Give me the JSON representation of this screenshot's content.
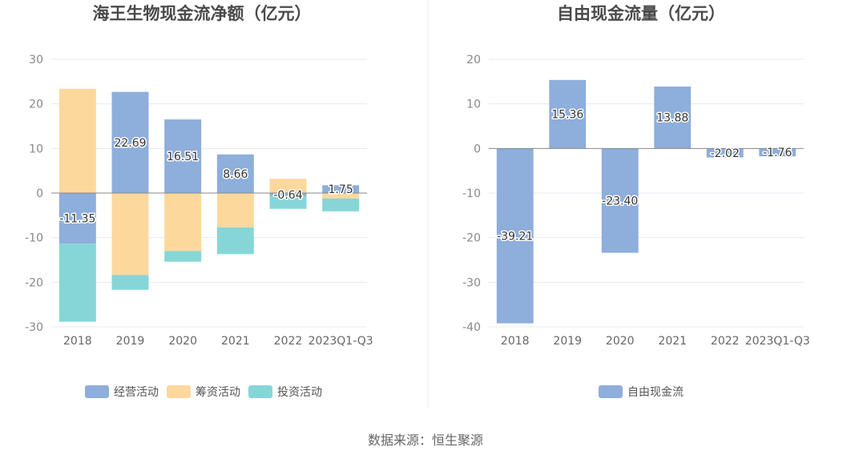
{
  "charts": [
    {
      "title": "海王生物现金流净额（亿元）",
      "chart_data": {
        "type": "bar",
        "stacked": true,
        "categories": [
          "2018",
          "2019",
          "2020",
          "2021",
          "2022",
          "2023Q1-Q3"
        ],
        "ylim": [
          -30,
          30
        ],
        "yticks": [
          30,
          20,
          10,
          0,
          -10,
          -20,
          -30
        ],
        "grid": true,
        "legend_position": "bottom",
        "series": [
          {
            "name": "经营活动",
            "color": "#8eaedb",
            "values": [
              -11.35,
              22.69,
              16.51,
              8.66,
              -0.64,
              1.75
            ],
            "labels": [
              "-11.35",
              "22.69",
              "16.51",
              "8.66",
              "-0.64",
              "1.75"
            ]
          },
          {
            "name": "筹资活动",
            "color": "#fdd89d",
            "values": [
              23.4,
              -18.4,
              -13.0,
              -7.7,
              3.2,
              -1.2
            ]
          },
          {
            "name": "投资活动",
            "color": "#86d6d8",
            "values": [
              -17.5,
              -3.3,
              -2.4,
              -6.0,
              -2.9,
              -2.9
            ]
          }
        ]
      }
    },
    {
      "title": "自由现金流量（亿元）",
      "chart_data": {
        "type": "bar",
        "categories": [
          "2018",
          "2019",
          "2020",
          "2021",
          "2022",
          "2023Q1-Q3"
        ],
        "ylim": [
          -40,
          20
        ],
        "yticks": [
          20,
          10,
          0,
          -10,
          -20,
          -30,
          -40
        ],
        "grid": true,
        "legend_position": "bottom",
        "series": [
          {
            "name": "自由现金流",
            "color": "#8eaedb",
            "values": [
              -39.21,
              15.36,
              -23.4,
              13.88,
              -2.02,
              -1.76
            ],
            "labels": [
              "-39.21",
              "15.36",
              "-23.40",
              "13.88",
              "-2.02",
              "-1.76"
            ]
          }
        ]
      }
    }
  ],
  "source": "数据来源：恒生聚源"
}
